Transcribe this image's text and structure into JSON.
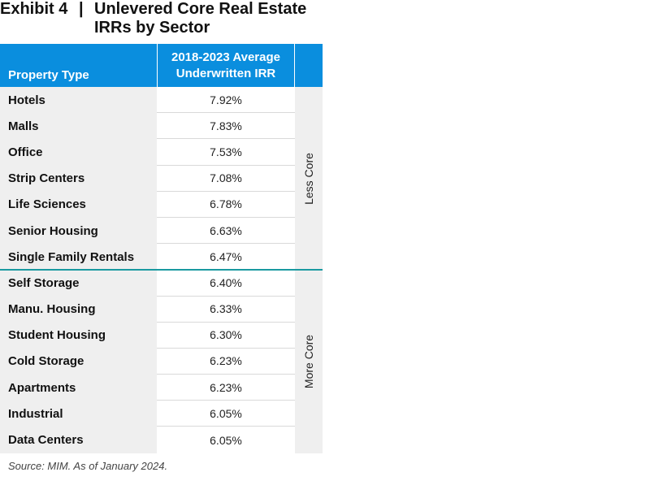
{
  "title": {
    "exhibit": "Exhibit 4",
    "separator": "|",
    "heading": "Unlevered Core Real Estate IRRs by Sector"
  },
  "table": {
    "headers": [
      "Property Type",
      "2018-2023 Average Underwritten IRR"
    ],
    "rows": [
      {
        "type": "Hotels",
        "irr": "7.92%"
      },
      {
        "type": "Malls",
        "irr": "7.83%"
      },
      {
        "type": "Office",
        "irr": "7.53%"
      },
      {
        "type": "Strip Centers",
        "irr": "7.08%"
      },
      {
        "type": "Life Sciences",
        "irr": "6.78%"
      },
      {
        "type": "Senior Housing",
        "irr": "6.63%"
      },
      {
        "type": "Single Family Rentals",
        "irr": "6.47%"
      },
      {
        "type": "Self Storage",
        "irr": "6.40%"
      },
      {
        "type": "Manu. Housing",
        "irr": "6.33%"
      },
      {
        "type": "Student Housing",
        "irr": "6.30%"
      },
      {
        "type": "Cold Storage",
        "irr": "6.23%"
      },
      {
        "type": "Apartments",
        "irr": "6.23%"
      },
      {
        "type": "Industrial",
        "irr": "6.05%"
      },
      {
        "type": "Data Centers",
        "irr": "6.05%"
      }
    ],
    "groups": [
      "Less Core",
      "More Core"
    ]
  },
  "source": "Source: MIM. As of January 2024.",
  "colors": {
    "header": "#0a8ede",
    "divider": "#1a9aa0",
    "shade": "#efefef"
  }
}
